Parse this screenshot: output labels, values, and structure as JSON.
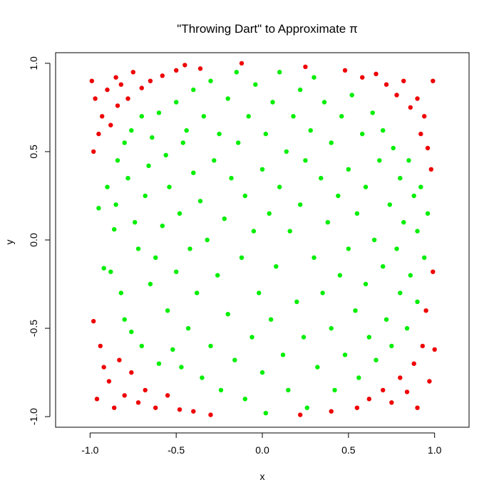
{
  "chart_data": {
    "type": "scatter",
    "title": "\"Throwing Dart\" to Approximate π",
    "xlabel": "x",
    "ylabel": "y",
    "xlim": [
      -1.2,
      1.2
    ],
    "ylim": [
      -1.06,
      1.06
    ],
    "x_ticks": [
      -1.0,
      -0.5,
      0.0,
      0.5,
      1.0
    ],
    "x_tick_labels": [
      "-1.0",
      "-0.5",
      "0.0",
      "0.5",
      "1.0"
    ],
    "y_ticks": [
      -1.0,
      -0.5,
      0.0,
      0.5,
      1.0
    ],
    "y_tick_labels": [
      "-1.0",
      "-0.5",
      "0.0",
      "0.5",
      "1.0"
    ],
    "grid": false,
    "legend": "none",
    "colors": {
      "inside": "#00ee00",
      "outside": "#ee0000"
    },
    "series": [
      {
        "points": [
          [
            -0.95,
            0.18
          ],
          [
            -0.92,
            -0.16
          ],
          [
            -0.9,
            0.3
          ],
          [
            -0.88,
            -0.18
          ],
          [
            -0.86,
            0.06
          ],
          [
            -0.85,
            0.2
          ],
          [
            -0.84,
            0.45
          ],
          [
            -0.82,
            -0.3
          ],
          [
            -0.8,
            0.55
          ],
          [
            -0.8,
            -0.45
          ],
          [
            -0.78,
            0.35
          ],
          [
            -0.76,
            0.62
          ],
          [
            -0.76,
            -0.52
          ],
          [
            -0.74,
            0.1
          ],
          [
            -0.72,
            -0.05
          ],
          [
            -0.7,
            0.7
          ],
          [
            -0.7,
            -0.6
          ],
          [
            -0.68,
            0.25
          ],
          [
            -0.66,
            0.42
          ],
          [
            -0.65,
            -0.25
          ],
          [
            -0.64,
            0.58
          ],
          [
            -0.62,
            -0.1
          ],
          [
            -0.6,
            0.72
          ],
          [
            -0.6,
            -0.7
          ],
          [
            -0.58,
            0.08
          ],
          [
            -0.56,
            0.48
          ],
          [
            -0.55,
            -0.4
          ],
          [
            -0.54,
            0.3
          ],
          [
            -0.52,
            -0.62
          ],
          [
            -0.5,
            0.78
          ],
          [
            -0.5,
            -0.18
          ],
          [
            -0.48,
            0.15
          ],
          [
            -0.47,
            -0.72
          ],
          [
            -0.46,
            0.55
          ],
          [
            -0.44,
            0.62
          ],
          [
            -0.43,
            -0.5
          ],
          [
            -0.42,
            -0.05
          ],
          [
            -0.4,
            0.85
          ],
          [
            -0.4,
            0.38
          ],
          [
            -0.38,
            -0.3
          ],
          [
            -0.36,
            0.22
          ],
          [
            -0.35,
            -0.78
          ],
          [
            -0.34,
            0.7
          ],
          [
            -0.32,
            0.0
          ],
          [
            -0.3,
            0.9
          ],
          [
            -0.3,
            -0.6
          ],
          [
            -0.28,
            0.45
          ],
          [
            -0.26,
            -0.2
          ],
          [
            -0.25,
            0.6
          ],
          [
            -0.24,
            -0.85
          ],
          [
            -0.22,
            0.12
          ],
          [
            -0.2,
            0.8
          ],
          [
            -0.2,
            -0.42
          ],
          [
            -0.18,
            0.35
          ],
          [
            -0.16,
            -0.68
          ],
          [
            -0.15,
            0.95
          ],
          [
            -0.14,
            0.55
          ],
          [
            -0.12,
            -0.1
          ],
          [
            -0.1,
            0.25
          ],
          [
            -0.1,
            -0.9
          ],
          [
            -0.08,
            0.7
          ],
          [
            -0.06,
            -0.55
          ],
          [
            -0.05,
            0.05
          ],
          [
            -0.04,
            0.88
          ],
          [
            -0.02,
            -0.3
          ],
          [
            0.0,
            0.4
          ],
          [
            0.0,
            -0.75
          ],
          [
            0.02,
            0.6
          ],
          [
            0.02,
            -0.98
          ],
          [
            0.04,
            0.15
          ],
          [
            0.05,
            -0.45
          ],
          [
            0.06,
            0.78
          ],
          [
            0.08,
            -0.15
          ],
          [
            0.1,
            0.95
          ],
          [
            0.1,
            0.3
          ],
          [
            0.12,
            -0.65
          ],
          [
            0.14,
            0.5
          ],
          [
            0.15,
            -0.85
          ],
          [
            0.16,
            0.05
          ],
          [
            0.18,
            0.7
          ],
          [
            0.2,
            -0.35
          ],
          [
            0.22,
            0.85
          ],
          [
            0.22,
            0.2
          ],
          [
            0.24,
            -0.55
          ],
          [
            0.25,
            0.45
          ],
          [
            0.26,
            -0.95
          ],
          [
            0.28,
            0.62
          ],
          [
            0.3,
            -0.1
          ],
          [
            0.3,
            0.92
          ],
          [
            0.32,
            -0.72
          ],
          [
            0.34,
            0.35
          ],
          [
            0.35,
            -0.3
          ],
          [
            0.36,
            0.78
          ],
          [
            0.38,
            0.1
          ],
          [
            0.4,
            -0.5
          ],
          [
            0.4,
            0.55
          ],
          [
            0.42,
            -0.85
          ],
          [
            0.44,
            0.25
          ],
          [
            0.45,
            -0.2
          ],
          [
            0.46,
            0.7
          ],
          [
            0.48,
            -0.65
          ],
          [
            0.5,
            0.4
          ],
          [
            0.5,
            -0.05
          ],
          [
            0.52,
            0.82
          ],
          [
            0.54,
            -0.4
          ],
          [
            0.55,
            0.15
          ],
          [
            0.56,
            -0.78
          ],
          [
            0.58,
            0.6
          ],
          [
            0.6,
            -0.25
          ],
          [
            0.6,
            0.3
          ],
          [
            0.62,
            -0.55
          ],
          [
            0.64,
            0.72
          ],
          [
            0.65,
            0.0
          ],
          [
            0.66,
            -0.68
          ],
          [
            0.68,
            0.45
          ],
          [
            0.7,
            -0.15
          ],
          [
            0.7,
            0.62
          ],
          [
            0.72,
            -0.45
          ],
          [
            0.74,
            0.2
          ],
          [
            0.75,
            -0.6
          ],
          [
            0.76,
            0.52
          ],
          [
            0.78,
            -0.05
          ],
          [
            0.8,
            0.35
          ],
          [
            0.8,
            -0.3
          ],
          [
            0.82,
            0.1
          ],
          [
            0.84,
            -0.5
          ],
          [
            0.85,
            0.45
          ],
          [
            0.86,
            -0.2
          ],
          [
            0.88,
            0.25
          ],
          [
            0.9,
            0.05
          ],
          [
            0.9,
            -0.35
          ],
          [
            0.92,
            0.3
          ],
          [
            0.94,
            -0.1
          ],
          [
            0.96,
            0.15
          ]
        ],
        "color": "#00ee00"
      },
      {
        "points": [
          [
            -0.99,
            0.9
          ],
          [
            -0.98,
            0.5
          ],
          [
            -0.98,
            -0.46
          ],
          [
            -0.97,
            0.8
          ],
          [
            -0.96,
            -0.9
          ],
          [
            -0.95,
            0.6
          ],
          [
            -0.94,
            -0.6
          ],
          [
            -0.93,
            0.7
          ],
          [
            -0.92,
            -0.72
          ],
          [
            -0.9,
            0.85
          ],
          [
            -0.89,
            -0.8
          ],
          [
            -0.88,
            0.65
          ],
          [
            -0.86,
            -0.95
          ],
          [
            -0.85,
            0.92
          ],
          [
            -0.84,
            0.76
          ],
          [
            -0.83,
            -0.68
          ],
          [
            -0.82,
            0.88
          ],
          [
            -0.8,
            -0.88
          ],
          [
            -0.78,
            0.8
          ],
          [
            -0.76,
            -0.75
          ],
          [
            -0.75,
            0.95
          ],
          [
            -0.72,
            -0.92
          ],
          [
            -0.7,
            0.86
          ],
          [
            -0.68,
            -0.85
          ],
          [
            -0.65,
            0.9
          ],
          [
            -0.62,
            -0.95
          ],
          [
            -0.58,
            0.93
          ],
          [
            -0.55,
            -0.88
          ],
          [
            -0.5,
            0.96
          ],
          [
            -0.48,
            -0.96
          ],
          [
            -0.45,
            0.99
          ],
          [
            -0.4,
            -0.97
          ],
          [
            -0.36,
            0.97
          ],
          [
            -0.3,
            -0.99
          ],
          [
            -0.12,
            1.0
          ],
          [
            0.22,
            -0.99
          ],
          [
            0.25,
            0.98
          ],
          [
            0.4,
            -0.97
          ],
          [
            0.48,
            0.96
          ],
          [
            0.55,
            -0.95
          ],
          [
            0.58,
            0.92
          ],
          [
            0.62,
            -0.9
          ],
          [
            0.66,
            0.94
          ],
          [
            0.7,
            -0.85
          ],
          [
            0.72,
            0.88
          ],
          [
            0.75,
            -0.92
          ],
          [
            0.78,
            0.82
          ],
          [
            0.8,
            -0.78
          ],
          [
            0.82,
            0.9
          ],
          [
            0.84,
            -0.86
          ],
          [
            0.86,
            0.75
          ],
          [
            0.88,
            -0.7
          ],
          [
            0.9,
            0.8
          ],
          [
            0.9,
            -0.95
          ],
          [
            0.92,
            0.6
          ],
          [
            0.93,
            -0.6
          ],
          [
            0.94,
            0.7
          ],
          [
            0.95,
            -0.4
          ],
          [
            0.96,
            0.52
          ],
          [
            0.97,
            -0.8
          ],
          [
            0.98,
            0.4
          ],
          [
            0.99,
            -0.18
          ],
          [
            0.99,
            0.9
          ],
          [
            1.0,
            -0.62
          ]
        ],
        "color": "#ee0000"
      }
    ]
  }
}
